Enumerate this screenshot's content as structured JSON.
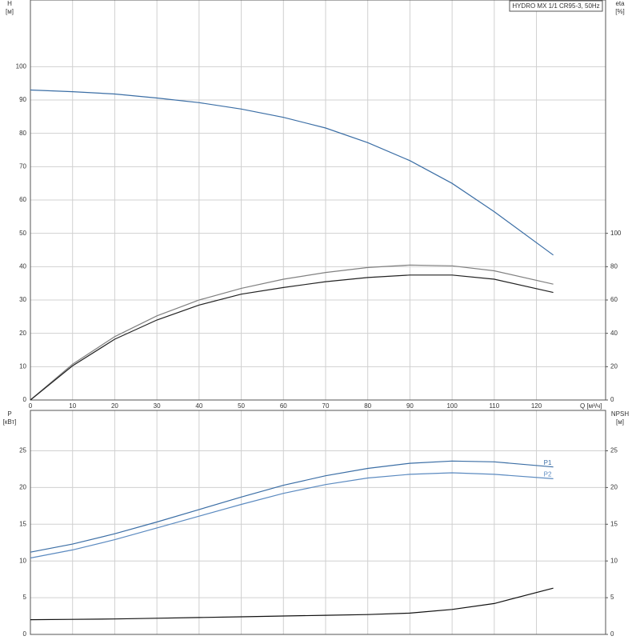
{
  "chart_data": [
    {
      "type": "line",
      "title": "HYDRO MX 1/1 CR95-3, 50Hz",
      "x_label": "Q [м³/ч]",
      "y_label": "H",
      "y_unit": "[м]",
      "y2_label": "eta",
      "y2_unit": "[%]",
      "x": [
        0,
        10,
        20,
        30,
        40,
        50,
        60,
        70,
        80,
        90,
        100,
        110,
        124
      ],
      "series": [
        {
          "color": "#3b6ea5",
          "values": [
            93,
            92.5,
            91.8,
            90.6,
            89.2,
            87.3,
            84.8,
            81.6,
            77.2,
            71.8,
            65,
            56.5,
            43.5
          ]
        },
        {
          "color": "#808080",
          "axis": "y2",
          "values": [
            0,
            21.5,
            38,
            50.5,
            60,
            67,
            72.5,
            76.5,
            79.5,
            81,
            80.5,
            77.5,
            69.5
          ]
        },
        {
          "color": "#222222",
          "axis": "y2",
          "values": [
            0,
            20.5,
            36.5,
            48,
            57,
            63.5,
            67.5,
            71,
            73.5,
            75,
            75,
            72.5,
            64.5
          ]
        }
      ],
      "xlim": [
        0,
        136.4
      ],
      "xticks": [
        0,
        10,
        20,
        30,
        40,
        50,
        60,
        70,
        80,
        90,
        100,
        110,
        120
      ],
      "ylim": [
        0,
        120
      ],
      "yticks": [
        0,
        10,
        20,
        30,
        40,
        50,
        60,
        70,
        80,
        90,
        100
      ],
      "y2lim": [
        0,
        240
      ],
      "y2ticks": [
        0,
        20,
        40,
        60,
        80,
        100
      ],
      "grid": true
    },
    {
      "type": "line",
      "y_label": "P",
      "y_unit": "[кВт]",
      "y2_label": "NPSH",
      "y2_unit": "[м]",
      "x": [
        0,
        10,
        20,
        30,
        40,
        50,
        60,
        70,
        80,
        90,
        100,
        110,
        124
      ],
      "series": [
        {
          "name": "P1",
          "color": "#3b6ea5",
          "values": [
            11.2,
            12.3,
            13.7,
            15.3,
            17,
            18.7,
            20.3,
            21.6,
            22.6,
            23.3,
            23.6,
            23.5,
            22.8
          ]
        },
        {
          "name": "P2",
          "color": "#5b8ac0",
          "values": [
            10.4,
            11.5,
            12.9,
            14.5,
            16.1,
            17.7,
            19.2,
            20.4,
            21.3,
            21.8,
            22,
            21.8,
            21.2
          ]
        },
        {
          "color": "#111111",
          "axis": "y2",
          "values": [
            2,
            2.05,
            2.1,
            2.2,
            2.3,
            2.4,
            2.5,
            2.6,
            2.7,
            2.9,
            3.4,
            4.2,
            6.3
          ]
        }
      ],
      "xlim": [
        0,
        136.4
      ],
      "xticks": [
        0,
        10,
        20,
        30,
        40,
        50,
        60,
        70,
        80,
        90,
        100,
        110,
        120
      ],
      "ylim": [
        0,
        30.5
      ],
      "yticks": [
        0,
        5,
        10,
        15,
        20,
        25
      ],
      "y2lim": [
        0,
        30.5
      ],
      "y2ticks": [
        0,
        5,
        10,
        15,
        20,
        25
      ],
      "grid": true
    }
  ]
}
